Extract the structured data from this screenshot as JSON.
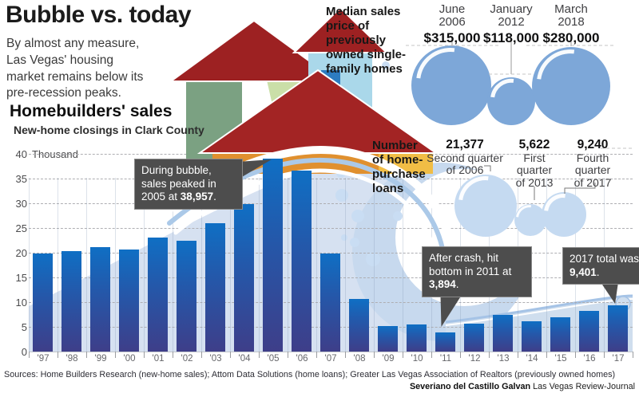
{
  "header": {
    "title": "Bubble vs. today",
    "intro": "By almost any measure,\nLas Vegas' housing\nmarket remains below its\npre-recession peaks."
  },
  "chart": {
    "title": "Homebuilders' sales",
    "subtitle": "New-home closings in Clark County"
  },
  "chart_data": [
    {
      "type": "bar",
      "title": "Homebuilders' sales",
      "subtitle": "New-home closings in Clark County",
      "categories": [
        "'97",
        "'98",
        "'99",
        "'00",
        "'01",
        "'02",
        "'03",
        "'04",
        "'05",
        "'06",
        "'07",
        "'08",
        "'09",
        "'10",
        "'11",
        "'12",
        "'13",
        "'14",
        "'15",
        "'16",
        "'17"
      ],
      "values": [
        19.9,
        20.3,
        21.2,
        20.6,
        23.0,
        22.5,
        25.9,
        29.9,
        38.957,
        36.6,
        19.8,
        10.6,
        5.2,
        5.5,
        3.894,
        5.6,
        7.4,
        6.2,
        6.9,
        8.2,
        9.401
      ],
      "unit": "thousand new-home closings",
      "ylabel": "Thousand",
      "ylim": [
        0,
        40
      ],
      "yticks": [
        0,
        5,
        10,
        15,
        20,
        25,
        30,
        35,
        40
      ],
      "grid": "dashed-horizontal",
      "annotations": [
        "During bubble, sales peaked in 2005 at 38,957.",
        "After crash, hit bottom in 2011 at 3,894.",
        "2017 total was 9,401."
      ]
    },
    {
      "type": "bubble",
      "title": "Median sales price of previously owned single-family homes",
      "points": [
        {
          "label": "June 2006",
          "value": 315000,
          "display": "$315,000"
        },
        {
          "label": "January 2012",
          "value": 118000,
          "display": "$118,000"
        },
        {
          "label": "March 2018",
          "value": 280000,
          "display": "$280,000"
        }
      ],
      "color": "#7da7d8"
    },
    {
      "type": "bubble",
      "title": "Number of home-purchase loans",
      "points": [
        {
          "label": "Second quarter of 2006",
          "value": 21377,
          "display": "21,377"
        },
        {
          "label": "First quarter of 2013",
          "value": 5622,
          "display": "5,622"
        },
        {
          "label": "Fourth quarter of 2017",
          "value": 9240,
          "display": "9,240"
        }
      ],
      "color": "#c5daf1"
    }
  ],
  "price_section": {
    "label": "Median sales\nprice of\npreviously\nowned single-\nfamily homes",
    "items": [
      {
        "line1": "June",
        "line2": "2006",
        "value": "$315,000"
      },
      {
        "line1": "January",
        "line2": "2012",
        "value": "$118,000"
      },
      {
        "line1": "March",
        "line2": "2018",
        "value": "$280,000"
      }
    ]
  },
  "loans_section": {
    "label": "Number\nof home-\npurchase\nloans",
    "items": [
      {
        "value": "21,377",
        "sub": "Second quarter\nof 2006"
      },
      {
        "value": "5,622",
        "sub": "First\nquarter\nof 2013"
      },
      {
        "value": "9,240",
        "sub": "Fourth\nquarter\nof 2017"
      }
    ]
  },
  "callouts": [
    {
      "pre": "During bubble, sales peaked in 2005 at ",
      "bold": "38,957",
      "post": "."
    },
    {
      "pre": "After crash, hit bottom in 2011 at ",
      "bold": "3,894",
      "post": "."
    },
    {
      "pre": "2017 total was ",
      "bold": "9,401",
      "post": "."
    }
  ],
  "footer": {
    "sources": "Sources: Home Builders Research (new-home sales); Attom Data Solutions (home loans); Greater Las Vegas Association of Realtors (previously owned homes)",
    "credit_name": "Severiano del Castillo Galvan",
    "credit_org": " Las Vegas Review-Journal"
  },
  "colors": {
    "bar_top": "#0f6fc4",
    "bar_bottom": "#3e3e89",
    "price_bubble": "#7da7d8",
    "loans_bubble": "#c5daf1",
    "callout_bg": "#4d4d4d",
    "wave_light": "#d6e1f1",
    "wave_mid": "#abc9e8",
    "roof_red": "#9d2122",
    "house_green": "#7ba182",
    "house_orange": "#e0902f"
  }
}
